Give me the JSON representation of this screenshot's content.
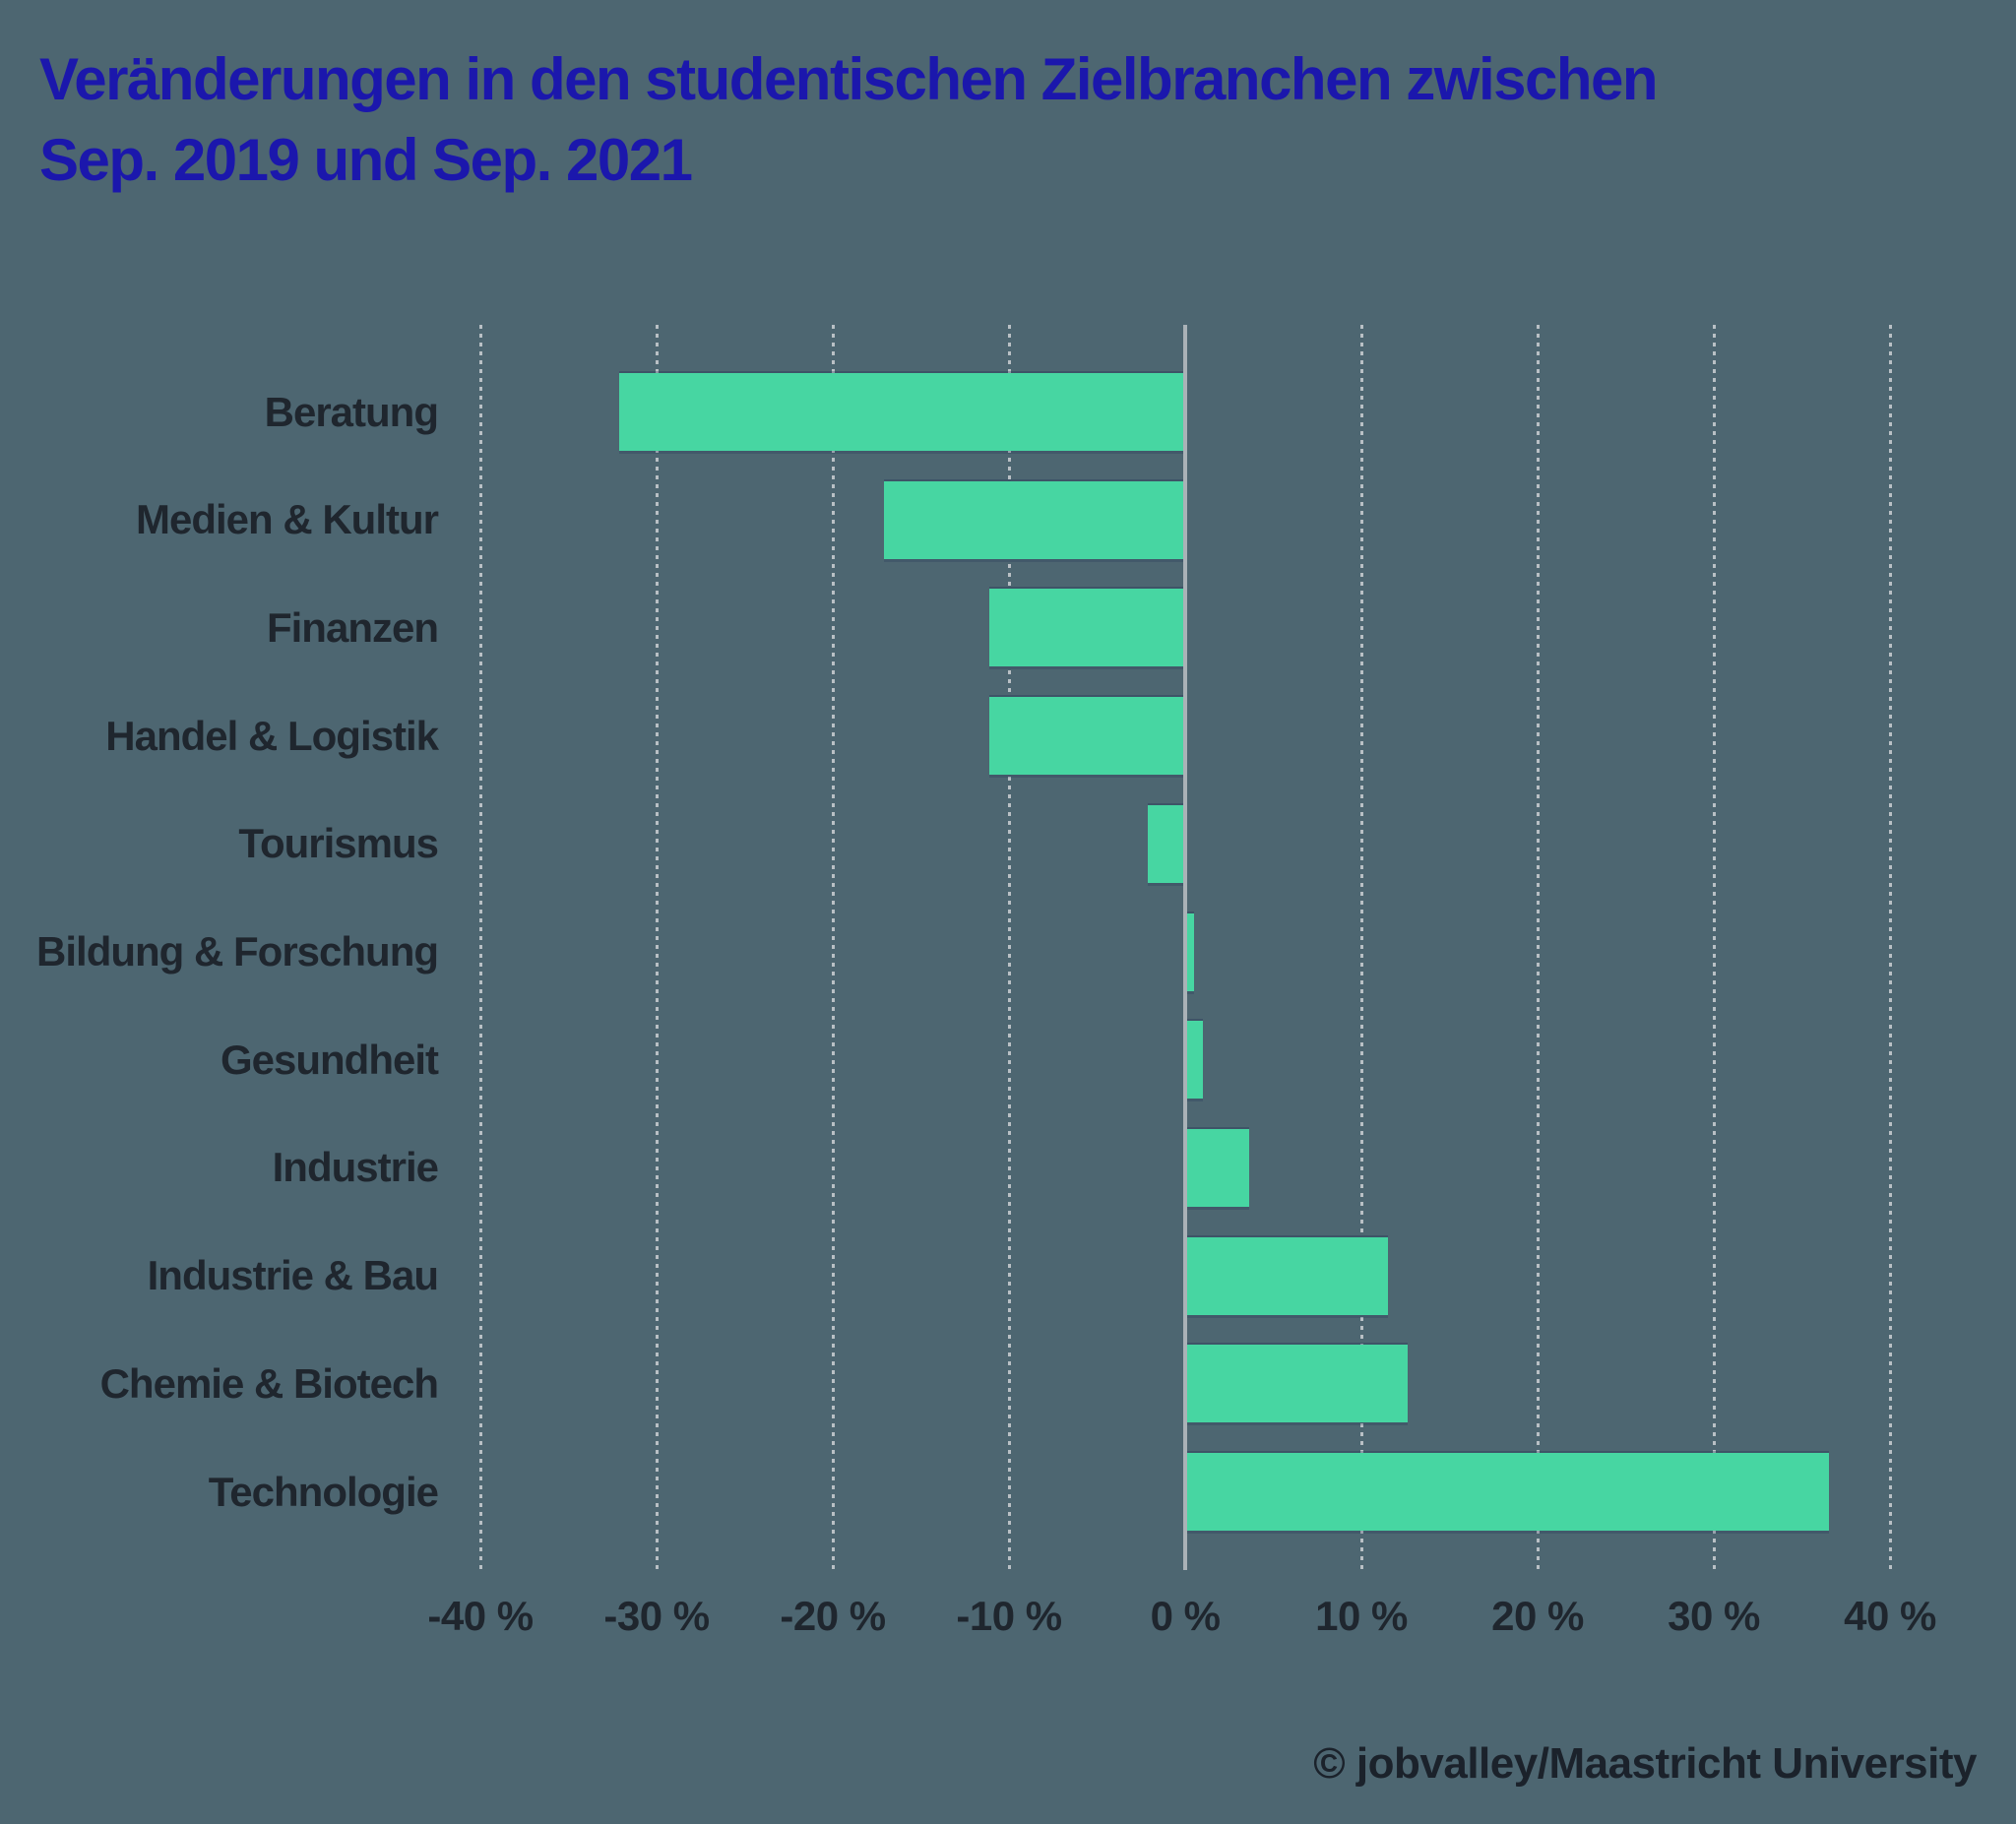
{
  "title": {
    "line1": "Veränderungen in den studentischen Zielbranchen zwischen",
    "line2": "Sep. 2019 und Sep. 2021"
  },
  "credit": "© jobvalley/Maastricht University",
  "chart_data": {
    "type": "bar",
    "orientation": "horizontal",
    "title": "Veränderungen in den studentischen Zielbranchen zwischen Sep. 2019 und Sep. 2021",
    "categories": [
      "Beratung",
      "Medien & Kultur",
      "Finanzen",
      "Handel & Logistik",
      "Tourismus",
      "Bildung & Forschung",
      "Gesundheit",
      "Industrie",
      "Industrie & Bau",
      "Chemie & Biotech",
      "Technologie"
    ],
    "values": [
      -32,
      -17,
      -11,
      -11,
      -2,
      0.4,
      0.9,
      3.5,
      11.4,
      12.5,
      36.4
    ],
    "unit": "%",
    "xlabel": "",
    "ylabel": "",
    "xlim": [
      -40,
      40
    ],
    "xticks": [
      -40,
      -30,
      -20,
      -10,
      0,
      10,
      20,
      30,
      40
    ],
    "xtick_labels": [
      "-40 %",
      "-30 %",
      "-20 %",
      "-10 %",
      "0 %",
      "10 %",
      "20 %",
      "30 %",
      "40 %"
    ],
    "grid": "vertical-dotted",
    "legend": "none",
    "colors": {
      "bar": "#47d6a2",
      "background": "#4d6671",
      "title": "#1b17ac",
      "text": "#1f262e",
      "gridline": "#b9c0c5",
      "axis": "#aab2b7"
    }
  }
}
